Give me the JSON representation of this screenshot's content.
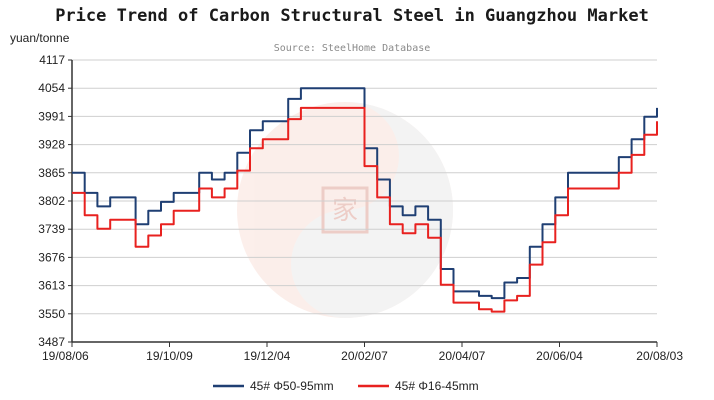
{
  "chart_data": {
    "type": "line",
    "title": "Price Trend of Carbon Structural Steel in Guangzhou Market",
    "subtitle": "Source: SteelHome Database",
    "y_unit": "yuan/tonne",
    "ylim": [
      3487,
      4117
    ],
    "y_ticks": [
      "4117",
      "4054",
      "3991",
      "3928",
      "3865",
      "3802",
      "3739",
      "3676",
      "3613",
      "3550",
      "3487"
    ],
    "x_tick_labels": [
      "19/08/06",
      "19/10/09",
      "19/12/04",
      "20/02/07",
      "20/04/07",
      "20/06/04",
      "20/08/03"
    ],
    "grid": "horizontal",
    "legend_position": "bottom",
    "colors": {
      "series1": "#1f3f73",
      "series2": "#e8211f",
      "grid": "#cfcfcf",
      "axis": "#333333"
    },
    "x": [
      "19/08/06",
      "19/08/13",
      "19/08/16",
      "19/08/20",
      "19/08/27",
      "19/09/03",
      "19/09/10",
      "19/09/17",
      "19/09/24",
      "19/10/01",
      "19/10/09",
      "19/10/20",
      "19/11/01",
      "19/11/10",
      "19/11/17",
      "19/11/24",
      "19/12/04",
      "19/12/15",
      "19/12/25",
      "20/01/05",
      "20/01/15",
      "20/01/25",
      "20/02/07",
      "20/02/14",
      "20/02/21",
      "20/03/01",
      "20/03/10",
      "20/03/17",
      "20/03/24",
      "20/04/01",
      "20/04/07",
      "20/04/14",
      "20/04/20",
      "20/04/27",
      "20/05/05",
      "20/05/10",
      "20/05/17",
      "20/05/24",
      "20/06/04",
      "20/06/11",
      "20/06/18",
      "20/06/25",
      "20/07/02",
      "20/07/09",
      "20/07/16",
      "20/07/23",
      "20/08/03"
    ],
    "series": [
      {
        "name": "45# Φ50-95mm",
        "values": [
          3865,
          3820,
          3790,
          3810,
          3810,
          3750,
          3780,
          3800,
          3820,
          3820,
          3865,
          3850,
          3865,
          3910,
          3960,
          3980,
          3980,
          4030,
          4054,
          4054,
          4054,
          4054,
          4054,
          3920,
          3850,
          3790,
          3770,
          3790,
          3760,
          3650,
          3600,
          3600,
          3590,
          3585,
          3620,
          3630,
          3700,
          3750,
          3810,
          3865,
          3865,
          3865,
          3865,
          3900,
          3940,
          3990,
          4010
        ]
      },
      {
        "name": "45# Φ16-45mm",
        "values": [
          3820,
          3770,
          3740,
          3760,
          3760,
          3700,
          3725,
          3750,
          3780,
          3780,
          3830,
          3810,
          3830,
          3870,
          3920,
          3940,
          3940,
          3985,
          4010,
          4010,
          4010,
          4010,
          4010,
          3880,
          3810,
          3750,
          3730,
          3750,
          3720,
          3615,
          3575,
          3575,
          3560,
          3555,
          3580,
          3590,
          3660,
          3710,
          3770,
          3830,
          3830,
          3830,
          3830,
          3865,
          3905,
          3950,
          3980
        ]
      }
    ]
  }
}
